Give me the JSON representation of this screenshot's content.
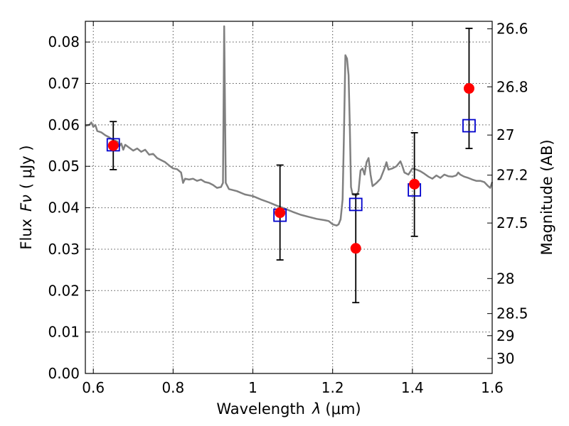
{
  "chart_data": {
    "type": "scatter",
    "title": "",
    "xlabel_prefix": "Wavelength",
    "xlabel_symbol": "λ",
    "xlabel_unit": "(μm)",
    "ylabel_prefix": "Flux",
    "ylabel_symbol": "Fν",
    "ylabel_unit": "( μJy )",
    "y2label": "Magnitude (AB)",
    "xlim": [
      0.58,
      1.6
    ],
    "ylim": [
      0.0,
      0.085
    ],
    "grid": true,
    "x_ticks": [
      {
        "value": 0.6,
        "label": "0.6"
      },
      {
        "value": 0.8,
        "label": "0.8"
      },
      {
        "value": 1.0,
        "label": "1"
      },
      {
        "value": 1.2,
        "label": "1.2"
      },
      {
        "value": 1.4,
        "label": "1.4"
      },
      {
        "value": 1.6,
        "label": "1.6"
      }
    ],
    "y_ticks": [
      {
        "value": 0.0,
        "label": "0.00"
      },
      {
        "value": 0.01,
        "label": "0.01"
      },
      {
        "value": 0.02,
        "label": "0.02"
      },
      {
        "value": 0.03,
        "label": "0.03"
      },
      {
        "value": 0.04,
        "label": "0.04"
      },
      {
        "value": 0.05,
        "label": "0.05"
      },
      {
        "value": 0.06,
        "label": "0.06"
      },
      {
        "value": 0.07,
        "label": "0.07"
      },
      {
        "value": 0.08,
        "label": "0.08"
      }
    ],
    "y2_ticks": [
      {
        "mag": 26.6,
        "label": "26.6"
      },
      {
        "mag": 26.8,
        "label": "26.8"
      },
      {
        "mag": 27.0,
        "label": "27"
      },
      {
        "mag": 27.2,
        "label": "27.2"
      },
      {
        "mag": 27.5,
        "label": "27.5"
      },
      {
        "mag": 28.0,
        "label": "28"
      },
      {
        "mag": 28.5,
        "label": "28.5"
      },
      {
        "mag": 29.0,
        "label": "29"
      },
      {
        "mag": 30.0,
        "label": "30"
      }
    ],
    "series": [
      {
        "kind": "line",
        "color": "#808080",
        "points": [
          [
            0.58,
            0.0598
          ],
          [
            0.59,
            0.06
          ],
          [
            0.595,
            0.0606
          ],
          [
            0.6,
            0.0595
          ],
          [
            0.605,
            0.06
          ],
          [
            0.61,
            0.0585
          ],
          [
            0.62,
            0.0582
          ],
          [
            0.63,
            0.0575
          ],
          [
            0.64,
            0.057
          ],
          [
            0.65,
            0.0563
          ],
          [
            0.66,
            0.056
          ],
          [
            0.665,
            0.0548
          ],
          [
            0.67,
            0.0555
          ],
          [
            0.675,
            0.054
          ],
          [
            0.68,
            0.0552
          ],
          [
            0.69,
            0.0545
          ],
          [
            0.7,
            0.0538
          ],
          [
            0.71,
            0.0543
          ],
          [
            0.72,
            0.0535
          ],
          [
            0.73,
            0.054
          ],
          [
            0.74,
            0.0528
          ],
          [
            0.75,
            0.053
          ],
          [
            0.76,
            0.052
          ],
          [
            0.77,
            0.0515
          ],
          [
            0.78,
            0.051
          ],
          [
            0.79,
            0.0502
          ],
          [
            0.8,
            0.0495
          ],
          [
            0.81,
            0.0493
          ],
          [
            0.82,
            0.0485
          ],
          [
            0.825,
            0.046
          ],
          [
            0.83,
            0.047
          ],
          [
            0.84,
            0.0468
          ],
          [
            0.85,
            0.047
          ],
          [
            0.86,
            0.0465
          ],
          [
            0.87,
            0.0468
          ],
          [
            0.88,
            0.0462
          ],
          [
            0.89,
            0.046
          ],
          [
            0.9,
            0.0455
          ],
          [
            0.91,
            0.0448
          ],
          [
            0.92,
            0.045
          ],
          [
            0.925,
            0.046
          ],
          [
            0.928,
            0.0838
          ],
          [
            0.932,
            0.046
          ],
          [
            0.94,
            0.0445
          ],
          [
            0.96,
            0.044
          ],
          [
            0.98,
            0.0432
          ],
          [
            1.0,
            0.0428
          ],
          [
            1.02,
            0.042
          ],
          [
            1.04,
            0.0413
          ],
          [
            1.06,
            0.0405
          ],
          [
            1.08,
            0.0398
          ],
          [
            1.1,
            0.039
          ],
          [
            1.12,
            0.0383
          ],
          [
            1.14,
            0.0378
          ],
          [
            1.16,
            0.0373
          ],
          [
            1.18,
            0.037
          ],
          [
            1.19,
            0.0368
          ],
          [
            1.2,
            0.036
          ],
          [
            1.21,
            0.0357
          ],
          [
            1.215,
            0.036
          ],
          [
            1.22,
            0.0372
          ],
          [
            1.225,
            0.042
          ],
          [
            1.228,
            0.056
          ],
          [
            1.232,
            0.0768
          ],
          [
            1.236,
            0.076
          ],
          [
            1.24,
            0.072
          ],
          [
            1.243,
            0.06
          ],
          [
            1.246,
            0.045
          ],
          [
            1.25,
            0.0432
          ],
          [
            1.26,
            0.043
          ],
          [
            1.265,
            0.044
          ],
          [
            1.27,
            0.049
          ],
          [
            1.275,
            0.0495
          ],
          [
            1.28,
            0.048
          ],
          [
            1.285,
            0.051
          ],
          [
            1.29,
            0.052
          ],
          [
            1.295,
            0.048
          ],
          [
            1.3,
            0.0452
          ],
          [
            1.31,
            0.046
          ],
          [
            1.32,
            0.047
          ],
          [
            1.33,
            0.0495
          ],
          [
            1.335,
            0.051
          ],
          [
            1.34,
            0.0492
          ],
          [
            1.35,
            0.0495
          ],
          [
            1.36,
            0.05
          ],
          [
            1.37,
            0.0512
          ],
          [
            1.375,
            0.05
          ],
          [
            1.38,
            0.0485
          ],
          [
            1.39,
            0.048
          ],
          [
            1.4,
            0.0495
          ],
          [
            1.41,
            0.0492
          ],
          [
            1.42,
            0.0488
          ],
          [
            1.43,
            0.0482
          ],
          [
            1.44,
            0.0475
          ],
          [
            1.45,
            0.047
          ],
          [
            1.46,
            0.0478
          ],
          [
            1.47,
            0.0472
          ],
          [
            1.48,
            0.048
          ],
          [
            1.49,
            0.0476
          ],
          [
            1.5,
            0.0475
          ],
          [
            1.51,
            0.0478
          ],
          [
            1.515,
            0.0485
          ],
          [
            1.52,
            0.048
          ],
          [
            1.53,
            0.0475
          ],
          [
            1.54,
            0.0472
          ],
          [
            1.55,
            0.0468
          ],
          [
            1.56,
            0.0465
          ],
          [
            1.57,
            0.0465
          ],
          [
            1.58,
            0.0462
          ],
          [
            1.59,
            0.0452
          ],
          [
            1.595,
            0.0448
          ],
          [
            1.6,
            0.0462
          ]
        ]
      },
      {
        "kind": "measured",
        "color": "#ff0000",
        "points": [
          {
            "x": 0.65,
            "y": 0.055,
            "ylo": 0.0492,
            "yhi": 0.0608
          },
          {
            "x": 1.068,
            "y": 0.0388,
            "ylo": 0.0274,
            "yhi": 0.0503
          },
          {
            "x": 1.258,
            "y": 0.0302,
            "ylo": 0.0171,
            "yhi": 0.0433
          },
          {
            "x": 1.405,
            "y": 0.0457,
            "ylo": 0.0331,
            "yhi": 0.0581
          },
          {
            "x": 1.542,
            "y": 0.0688,
            "ylo": 0.0543,
            "yhi": 0.0833
          }
        ]
      },
      {
        "kind": "model",
        "color": "#0000cc",
        "points": [
          {
            "x": 0.65,
            "y": 0.0552
          },
          {
            "x": 1.068,
            "y": 0.0382
          },
          {
            "x": 1.258,
            "y": 0.0408
          },
          {
            "x": 1.405,
            "y": 0.0443
          },
          {
            "x": 1.542,
            "y": 0.0598
          }
        ]
      }
    ]
  }
}
